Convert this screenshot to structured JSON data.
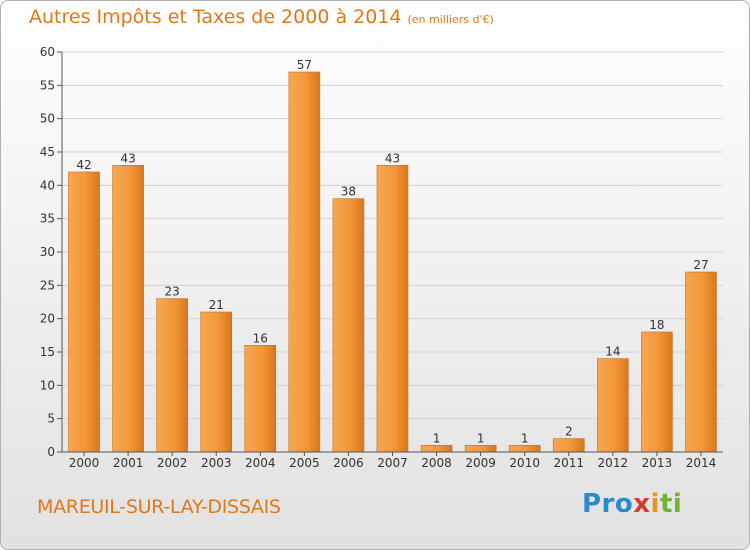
{
  "title": {
    "main": "Autres Impôts et Taxes de 2000 à 2014",
    "unit": "(en milliers d'€)"
  },
  "town": "MAREUIL-SUR-LAY-DISSAIS",
  "logo": {
    "a": "Pro",
    "b": "x",
    "c": "i",
    "d": "ti"
  },
  "colors": {
    "bar_light": "#f6a14c",
    "bar_dark": "#db7a1e",
    "accent": "#e07818"
  },
  "chart_data": {
    "type": "bar",
    "categories": [
      "2000",
      "2001",
      "2002",
      "2003",
      "2004",
      "2005",
      "2006",
      "2007",
      "2008",
      "2009",
      "2010",
      "2011",
      "2012",
      "2013",
      "2014"
    ],
    "values": [
      42,
      43,
      23,
      21,
      16,
      57,
      38,
      43,
      1,
      1,
      1,
      2,
      14,
      18,
      27
    ],
    "yticks": [
      0,
      5,
      10,
      15,
      20,
      25,
      30,
      35,
      40,
      45,
      50,
      55,
      60
    ],
    "ylim": [
      0,
      60
    ],
    "grid": true
  }
}
